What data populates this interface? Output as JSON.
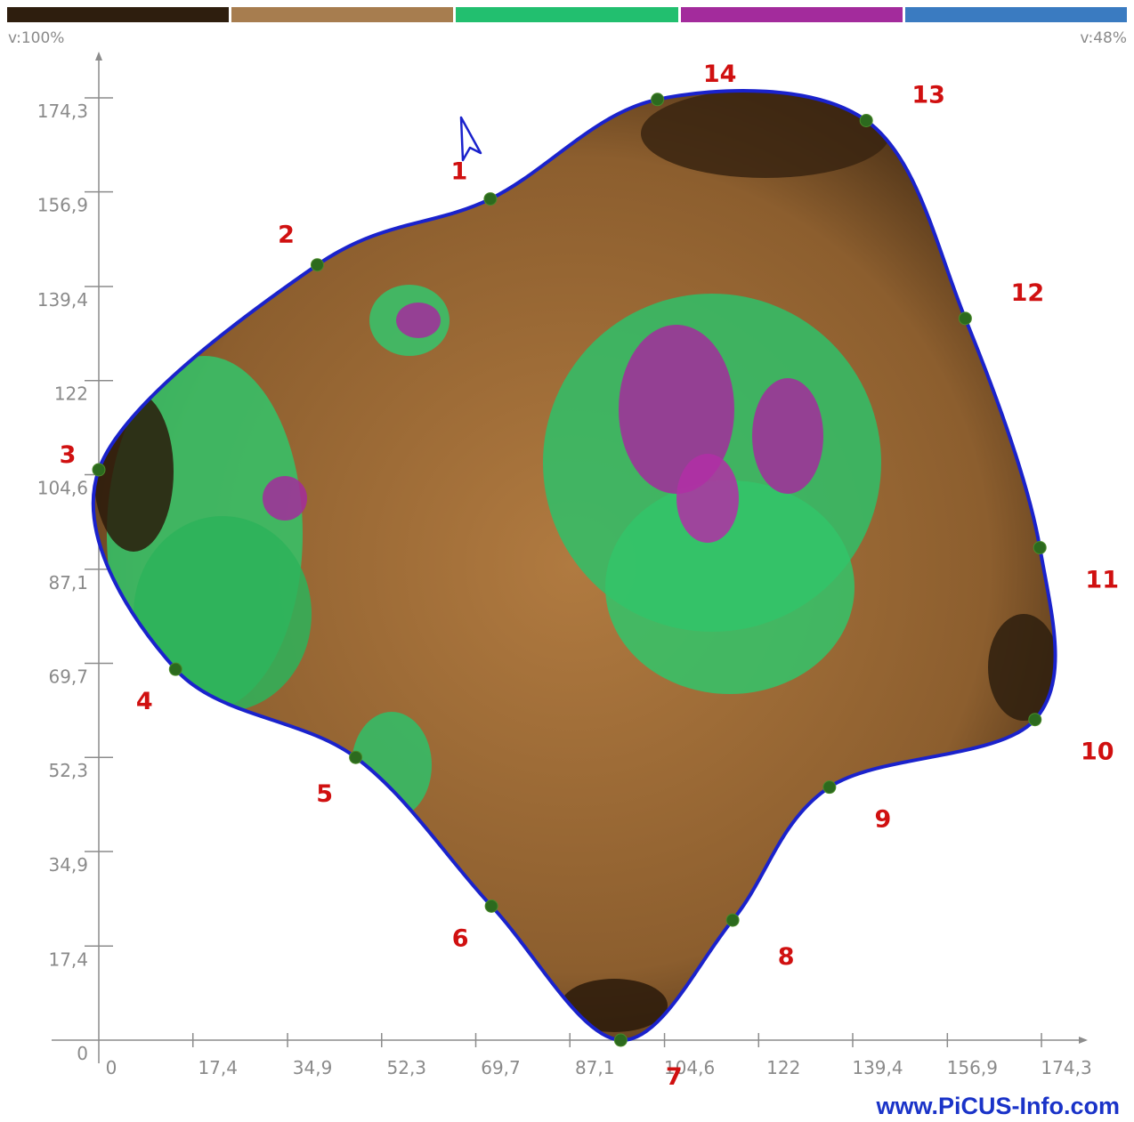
{
  "color_scale": {
    "segments": [
      {
        "name": "dark-brown",
        "color": "#2e1e0e"
      },
      {
        "name": "light-brown",
        "color": "#a77d4f"
      },
      {
        "name": "green",
        "color": "#22bf6f"
      },
      {
        "name": "purple",
        "color": "#a32b9c"
      },
      {
        "name": "blue",
        "color": "#3a7bc1"
      }
    ],
    "left_label": "v:100%",
    "right_label": "v:48%"
  },
  "watermark": "www.PiCUS-Info.com",
  "chart_data": {
    "type": "scatter",
    "title": "",
    "xlabel": "",
    "ylabel": "",
    "xlim": [
      0,
      180
    ],
    "ylim": [
      0,
      180
    ],
    "x_ticks": [
      "0",
      "17,4",
      "34,9",
      "52,3",
      "69,7",
      "87,1",
      "104,6",
      "122",
      "139,4",
      "156,9",
      "174,3"
    ],
    "y_ticks": [
      "0",
      "17,4",
      "34,9",
      "52,3",
      "69,7",
      "87,1",
      "104,6",
      "122",
      "139,4",
      "156,9",
      "174,3"
    ],
    "tick_values": [
      0,
      17.4,
      34.9,
      52.3,
      69.7,
      87.1,
      104.6,
      122,
      139.4,
      156.9,
      174.3
    ],
    "measurement_points": [
      {
        "label": "1",
        "x": 72.4,
        "y": 155.6
      },
      {
        "label": "2",
        "x": 40.4,
        "y": 143.4
      },
      {
        "label": "3",
        "x": 0.0,
        "y": 105.5
      },
      {
        "label": "4",
        "x": 14.2,
        "y": 68.6
      },
      {
        "label": "5",
        "x": 47.5,
        "y": 52.3
      },
      {
        "label": "6",
        "x": 72.6,
        "y": 24.8
      },
      {
        "label": "7",
        "x": 96.5,
        "y": 0.0
      },
      {
        "label": "8",
        "x": 117.2,
        "y": 22.2
      },
      {
        "label": "9",
        "x": 135.1,
        "y": 46.8
      },
      {
        "label": "10",
        "x": 173.1,
        "y": 59.3
      },
      {
        "label": "11",
        "x": 174.0,
        "y": 91.1
      },
      {
        "label": "12",
        "x": 160.2,
        "y": 133.5
      },
      {
        "label": "13",
        "x": 141.9,
        "y": 170.1
      },
      {
        "label": "14",
        "x": 103.3,
        "y": 174.0
      }
    ],
    "outline_color": "#1a22cc",
    "point_color": "#2c6a1e",
    "label_color": "#d01010"
  }
}
